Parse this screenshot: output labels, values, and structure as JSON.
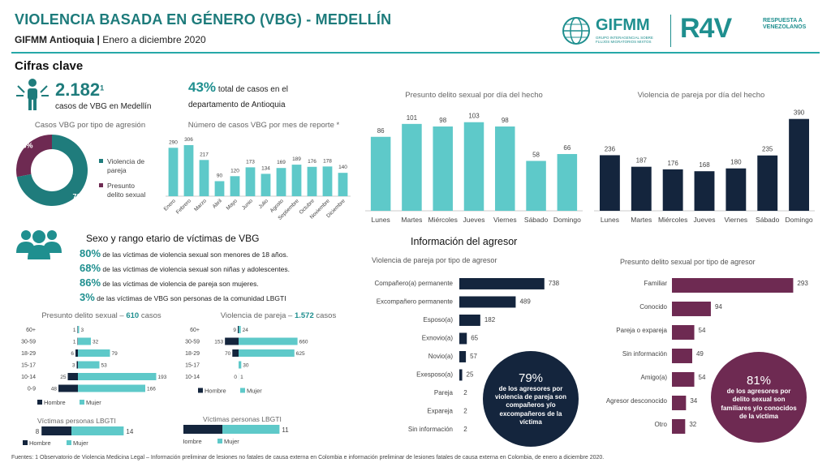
{
  "header": {
    "title": "VIOLENCIA BASADA EN GÉNERO (VBG) - MEDELLÍN",
    "org": "GIFMM Antioquia |",
    "period": "Enero a diciembre 2020",
    "logo1": "GIFMM",
    "logo1_sub": "GRUPO INTERAGENCIAL SOBRE FLUJOS MIGRATORIOS MIXTOS",
    "logo2": "R4V",
    "logo2_sub": "RESPUESTA A VENEZOLANOS"
  },
  "cifras": {
    "heading": "Cifras clave",
    "total": "2.182",
    "total_sup": "1",
    "total_label": "casos de VBG en Medellín",
    "pct": "43%",
    "pct_label1": "total de casos en el",
    "pct_label2": "departamento de Antioquia"
  },
  "colors": {
    "teal": "#1f7c7c",
    "light_teal": "#5ec9c9",
    "navy": "#14253d",
    "plum": "#6e2a52",
    "dark_teal": "#1a8080"
  },
  "sexo": {
    "heading": "Sexo y rango etario de víctimas de VBG",
    "lines": [
      {
        "pct": "80%",
        "text": "de las víctimas de violencia sexual son menores de 18 años."
      },
      {
        "pct": "68%",
        "text": "de las víctimas de violencia sexual son niñas y adolescentes."
      },
      {
        "pct": "86%",
        "text": "de las víctimas de violencia de pareja son mujeres."
      },
      {
        "pct": "3%",
        "text": "de las víctimas de VBG son personas de la comunidad LBGTI"
      }
    ]
  },
  "agresor": {
    "heading": "Información del agresor",
    "bubble1_pct": "79%",
    "bubble1_text": "de los agresores por violencia de pareja son compañeros y/o excompañeros de la víctima",
    "bubble2_pct": "81%",
    "bubble2_text": "de los agresores por delito sexual son familiares y/o conocidos de la víctima"
  },
  "footnote": "Fuentes: 1 Observatorio de Violencia Medicina Legal – Información preliminar de lesiones no fatales de causa externa en Colombia e información preliminar de lesiones fatales de causa externa en Colombia, de enero a diciembre 2020.",
  "chart_data": [
    {
      "id": "donut",
      "type": "pie",
      "title": "Casos VBG por tipo de agresión",
      "categories": [
        "Violencia de pareja",
        "Presunto delito sexual"
      ],
      "values": [
        72,
        28
      ],
      "labels": [
        "72%",
        "28%"
      ],
      "colors": [
        "#1f7c7c",
        "#6e2a52"
      ]
    },
    {
      "id": "mes",
      "type": "bar",
      "title": "Número de casos VBG por mes de reporte *",
      "categories": [
        "Enero",
        "Febrero",
        "Marzo",
        "Abril",
        "Mayo",
        "Junio",
        "Julio",
        "Agosto",
        "Septiembre",
        "Octubre",
        "Noviembre",
        "Diciembre"
      ],
      "values": [
        290,
        306,
        217,
        90,
        120,
        173,
        134,
        169,
        189,
        176,
        178,
        140
      ],
      "ylim": [
        0,
        340
      ]
    },
    {
      "id": "delito_dia",
      "type": "bar",
      "title": "Presunto delito sexual por día del hecho",
      "categories": [
        "Lunes",
        "Martes",
        "Miércoles",
        "Jueves",
        "Viernes",
        "Sábado",
        "Domingo"
      ],
      "values": [
        86,
        101,
        98,
        103,
        98,
        58,
        66
      ],
      "ylim": [
        0,
        115
      ]
    },
    {
      "id": "pareja_dia",
      "type": "bar",
      "title": "Violencia de pareja por día del hecho",
      "categories": [
        "Lunes",
        "Martes",
        "Miércoles",
        "Jueves",
        "Viernes",
        "Sábado",
        "Domingo"
      ],
      "values": [
        236,
        187,
        176,
        168,
        180,
        235,
        390
      ],
      "ylim": [
        0,
        420
      ]
    },
    {
      "id": "delito_edad",
      "type": "bar",
      "title": "Presunto delito sexual –",
      "title_value": "610",
      "title_unit": "casos",
      "categories": [
        "60+",
        "30-59",
        "18-29",
        "15-17",
        "10-14",
        "0-9"
      ],
      "series": [
        {
          "name": "Hombre",
          "values": [
            1,
            1,
            6,
            3,
            25,
            48
          ]
        },
        {
          "name": "Mujer",
          "values": [
            3,
            32,
            79,
            53,
            193,
            166
          ]
        }
      ]
    },
    {
      "id": "pareja_edad",
      "type": "bar",
      "title": "Violencia de pareja –",
      "title_value": "1.572",
      "title_unit": "casos",
      "categories": [
        "60+",
        "30-59",
        "18-29",
        "15-17",
        "10-14"
      ],
      "series": [
        {
          "name": "Hombre",
          "values": [
            9,
            153,
            70,
            null,
            0
          ]
        },
        {
          "name": "Mujer",
          "values": [
            24,
            660,
            625,
            30,
            1
          ]
        }
      ]
    },
    {
      "id": "lgbti_delito",
      "type": "bar",
      "title": "Víctimas personas LBGTI",
      "series": [
        {
          "name": "Hombre",
          "values": [
            8
          ]
        },
        {
          "name": "Mujer",
          "values": [
            14
          ]
        }
      ]
    },
    {
      "id": "lgbti_pareja",
      "type": "bar",
      "title": "Víctimas personas LBGTI",
      "series": [
        {
          "name": "Hombre",
          "values": [
            10
          ]
        },
        {
          "name": "Mujer",
          "values": [
            11
          ]
        }
      ]
    },
    {
      "id": "agresor_pareja",
      "type": "bar",
      "title": "Violencia de pareja por tipo de agresor",
      "categories": [
        "Compañero(a) permanente",
        "Excompañero permanente",
        "Esposo(a)",
        "Exnovio(a)",
        "Novio(a)",
        "Exesposo(a)",
        "Pareja",
        "Expareja",
        "Sin información"
      ],
      "values": [
        738,
        489,
        182,
        65,
        57,
        25,
        2,
        2,
        2
      ]
    },
    {
      "id": "agresor_delito",
      "type": "bar",
      "title": "Presunto delito sexual por tipo de agresor",
      "categories": [
        "Familiar",
        "Conocido",
        "Pareja o expareja",
        "Sin información",
        "Amigo(a)",
        "Agresor desconocido",
        "Otro"
      ],
      "values": [
        293,
        94,
        54,
        49,
        54,
        34,
        32
      ]
    }
  ]
}
